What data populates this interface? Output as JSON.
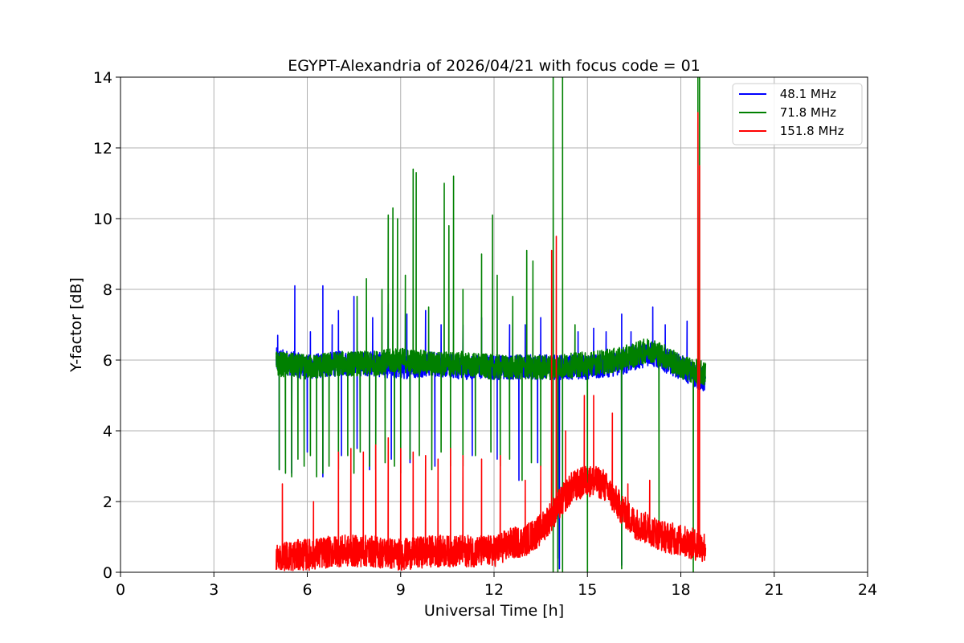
{
  "chart_data": {
    "type": "line",
    "title": "EGYPT-Alexandria of 2026/04/21 with focus code = 01",
    "xlabel": "Universal Time [h]",
    "ylabel": "Y-factor [dB]",
    "xlim": [
      0,
      24
    ],
    "ylim": [
      0,
      14
    ],
    "xticks": [
      "0",
      "3",
      "6",
      "9",
      "12",
      "15",
      "18",
      "21",
      "24"
    ],
    "yticks": [
      "0",
      "2",
      "4",
      "6",
      "8",
      "10",
      "12",
      "14"
    ],
    "grid": true,
    "legend_position": "top-right",
    "series": [
      {
        "name": "48.1 MHz",
        "label": " 48.1 MHz",
        "color": "#0000ff",
        "x_range": [
          5.0,
          18.8
        ],
        "baseline": [
          [
            5.0,
            6.0
          ],
          [
            5.5,
            5.9
          ],
          [
            6.0,
            5.8
          ],
          [
            7.0,
            5.9
          ],
          [
            8.0,
            5.9
          ],
          [
            9.0,
            5.8
          ],
          [
            10.0,
            5.9
          ],
          [
            11.0,
            5.8
          ],
          [
            12.0,
            5.8
          ],
          [
            13.0,
            5.8
          ],
          [
            14.0,
            5.8
          ],
          [
            15.0,
            5.8
          ],
          [
            16.0,
            5.9
          ],
          [
            17.0,
            6.2
          ],
          [
            17.5,
            6.0
          ],
          [
            18.0,
            5.8
          ],
          [
            18.8,
            5.4
          ]
        ],
        "noise": 0.35,
        "spikes": [
          [
            5.05,
            6.7
          ],
          [
            5.6,
            8.1
          ],
          [
            6.1,
            6.8
          ],
          [
            6.5,
            8.1
          ],
          [
            6.8,
            7.0
          ],
          [
            7.0,
            7.4
          ],
          [
            7.5,
            7.8
          ],
          [
            8.1,
            7.2
          ],
          [
            8.6,
            7.6
          ],
          [
            9.2,
            7.3
          ],
          [
            9.8,
            7.4
          ],
          [
            10.3,
            7.0
          ],
          [
            11.0,
            7.0
          ],
          [
            11.6,
            7.2
          ],
          [
            12.5,
            7.0
          ],
          [
            13.0,
            7.0
          ],
          [
            13.5,
            7.2
          ],
          [
            14.7,
            6.8
          ],
          [
            15.2,
            6.9
          ],
          [
            15.6,
            6.8
          ],
          [
            16.1,
            7.3
          ],
          [
            16.4,
            6.8
          ],
          [
            17.1,
            7.5
          ],
          [
            17.5,
            7.0
          ],
          [
            18.2,
            7.1
          ]
        ],
        "dips": [
          [
            5.1,
            2.9
          ],
          [
            5.5,
            2.8
          ],
          [
            6.0,
            3.4
          ],
          [
            6.5,
            2.7
          ],
          [
            7.1,
            3.3
          ],
          [
            7.6,
            3.5
          ],
          [
            8.0,
            2.9
          ],
          [
            8.7,
            3.2
          ],
          [
            9.3,
            3.1
          ],
          [
            10.1,
            3.0
          ],
          [
            11.3,
            3.3
          ],
          [
            12.1,
            3.2
          ],
          [
            12.8,
            2.6
          ],
          [
            13.4,
            3.1
          ],
          [
            14.05,
            0.4
          ],
          [
            14.1,
            0.1
          ],
          [
            16.1,
            0.2
          ]
        ]
      },
      {
        "name": "71.8 MHz",
        "label": " 71.8 MHz",
        "color": "#008000",
        "x_range": [
          5.0,
          18.8
        ],
        "baseline": [
          [
            5.0,
            5.9
          ],
          [
            6.0,
            5.8
          ],
          [
            7.0,
            5.9
          ],
          [
            8.0,
            5.9
          ],
          [
            9.0,
            6.0
          ],
          [
            10.0,
            5.9
          ],
          [
            11.0,
            5.9
          ],
          [
            12.0,
            5.8
          ],
          [
            13.0,
            5.8
          ],
          [
            14.0,
            5.8
          ],
          [
            15.0,
            5.9
          ],
          [
            16.0,
            6.0
          ],
          [
            17.0,
            6.3
          ],
          [
            17.5,
            6.1
          ],
          [
            18.0,
            5.8
          ],
          [
            18.8,
            5.6
          ]
        ],
        "noise": 0.35,
        "spikes": [
          [
            7.6,
            7.8
          ],
          [
            7.9,
            8.3
          ],
          [
            8.4,
            8.0
          ],
          [
            8.6,
            10.1
          ],
          [
            8.75,
            10.3
          ],
          [
            8.9,
            10.0
          ],
          [
            9.15,
            8.4
          ],
          [
            9.4,
            11.4
          ],
          [
            9.5,
            11.3
          ],
          [
            9.9,
            7.5
          ],
          [
            10.4,
            11.0
          ],
          [
            10.55,
            9.8
          ],
          [
            10.7,
            11.2
          ],
          [
            11.0,
            8.0
          ],
          [
            11.6,
            9.0
          ],
          [
            11.95,
            10.1
          ],
          [
            12.1,
            8.4
          ],
          [
            12.6,
            7.8
          ],
          [
            13.05,
            9.1
          ],
          [
            13.25,
            8.8
          ],
          [
            13.9,
            14.0
          ],
          [
            14.2,
            14.0
          ],
          [
            14.6,
            7.0
          ],
          [
            18.55,
            14.0
          ],
          [
            18.6,
            14.0
          ]
        ],
        "dips": [
          [
            5.1,
            2.9
          ],
          [
            5.3,
            2.8
          ],
          [
            5.5,
            2.7
          ],
          [
            5.7,
            3.2
          ],
          [
            5.9,
            3.0
          ],
          [
            6.1,
            3.3
          ],
          [
            6.3,
            2.7
          ],
          [
            6.5,
            2.8
          ],
          [
            6.7,
            3.0
          ],
          [
            7.0,
            2.9
          ],
          [
            7.3,
            3.3
          ],
          [
            7.5,
            2.8
          ],
          [
            7.7,
            3.4
          ],
          [
            8.0,
            3.0
          ],
          [
            8.2,
            2.9
          ],
          [
            8.5,
            3.1
          ],
          [
            8.8,
            3.0
          ],
          [
            9.0,
            2.8
          ],
          [
            9.3,
            3.2
          ],
          [
            9.6,
            3.3
          ],
          [
            10.0,
            2.9
          ],
          [
            10.3,
            3.4
          ],
          [
            10.6,
            3.0
          ],
          [
            11.0,
            3.0
          ],
          [
            11.4,
            3.3
          ],
          [
            11.9,
            3.4
          ],
          [
            12.2,
            3.0
          ],
          [
            12.5,
            3.2
          ],
          [
            12.9,
            2.6
          ],
          [
            13.2,
            3.1
          ],
          [
            13.5,
            3.0
          ],
          [
            13.9,
            0.0
          ],
          [
            14.05,
            0.0
          ],
          [
            14.2,
            0.0
          ],
          [
            15.0,
            0.0
          ],
          [
            16.1,
            0.1
          ],
          [
            17.3,
            0.9
          ],
          [
            18.4,
            0.0
          ]
        ]
      },
      {
        "name": "151.8 MHz",
        "label": " 151.8 MHz",
        "color": "#ff0000",
        "x_range": [
          5.0,
          18.8
        ],
        "baseline": [
          [
            5.0,
            0.4
          ],
          [
            6.0,
            0.5
          ],
          [
            7.0,
            0.6
          ],
          [
            8.0,
            0.6
          ],
          [
            9.0,
            0.5
          ],
          [
            10.0,
            0.6
          ],
          [
            11.0,
            0.6
          ],
          [
            12.0,
            0.6
          ],
          [
            12.5,
            0.8
          ],
          [
            13.0,
            0.9
          ],
          [
            13.5,
            1.2
          ],
          [
            14.0,
            1.8
          ],
          [
            14.5,
            2.4
          ],
          [
            15.0,
            2.6
          ],
          [
            15.5,
            2.5
          ],
          [
            16.0,
            1.9
          ],
          [
            16.5,
            1.4
          ],
          [
            17.0,
            1.2
          ],
          [
            17.5,
            1.0
          ],
          [
            18.0,
            0.9
          ],
          [
            18.8,
            0.7
          ]
        ],
        "noise": 0.45,
        "spikes": [
          [
            5.2,
            2.5
          ],
          [
            6.2,
            2.0
          ],
          [
            7.0,
            3.4
          ],
          [
            7.4,
            3.5
          ],
          [
            7.8,
            3.4
          ],
          [
            8.2,
            3.6
          ],
          [
            8.6,
            3.8
          ],
          [
            9.0,
            3.5
          ],
          [
            9.4,
            3.4
          ],
          [
            9.8,
            3.3
          ],
          [
            10.2,
            3.2
          ],
          [
            10.6,
            3.5
          ],
          [
            11.0,
            3.3
          ],
          [
            11.6,
            3.2
          ],
          [
            12.2,
            3.3
          ],
          [
            13.0,
            2.6
          ],
          [
            13.5,
            3.0
          ],
          [
            13.85,
            9.1
          ],
          [
            14.0,
            9.5
          ],
          [
            14.3,
            4.0
          ],
          [
            14.9,
            5.0
          ],
          [
            15.2,
            5.0
          ],
          [
            15.8,
            4.5
          ],
          [
            16.3,
            2.5
          ],
          [
            17.0,
            2.6
          ],
          [
            18.55,
            13.0
          ],
          [
            18.6,
            11.5
          ]
        ],
        "dips": []
      }
    ]
  }
}
